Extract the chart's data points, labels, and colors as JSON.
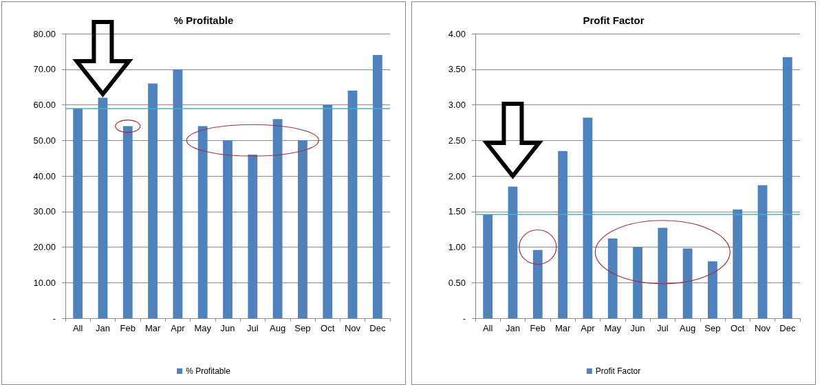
{
  "chart_data": [
    {
      "type": "bar",
      "title": "% Profitable",
      "categories": [
        "All",
        "Jan",
        "Feb",
        "Mar",
        "Apr",
        "May",
        "Jun",
        "Jul",
        "Aug",
        "Sep",
        "Oct",
        "Nov",
        "Dec"
      ],
      "series": [
        {
          "name": "% Profitable",
          "color": "#4f81bd",
          "values": [
            59,
            62,
            54,
            66,
            70,
            54,
            50,
            46,
            56,
            50,
            60,
            64,
            74
          ]
        }
      ],
      "ylim": [
        0,
        80
      ],
      "yticks": [
        {
          "value": 0,
          "label": "-"
        },
        {
          "value": 10,
          "label": "10.00"
        },
        {
          "value": 20,
          "label": "20.00"
        },
        {
          "value": 30,
          "label": "30.00"
        },
        {
          "value": 40,
          "label": "40.00"
        },
        {
          "value": 50,
          "label": "50.00"
        },
        {
          "value": 60,
          "label": "60.00"
        },
        {
          "value": 70,
          "label": "70.00"
        },
        {
          "value": 80,
          "label": "80.00"
        }
      ],
      "ref_lines": [
        {
          "axis": "y",
          "value": 59,
          "color": "#4bacc6"
        }
      ],
      "grid": "y",
      "legend": "bottom"
    },
    {
      "type": "bar",
      "title": "Profit Factor",
      "categories": [
        "All",
        "Jan",
        "Feb",
        "Mar",
        "Apr",
        "May",
        "Jun",
        "Jul",
        "Aug",
        "Sep",
        "Oct",
        "Nov",
        "Dec"
      ],
      "series": [
        {
          "name": "Profit Factor",
          "color": "#4f81bd",
          "values": [
            1.46,
            1.85,
            0.96,
            2.35,
            2.82,
            1.12,
            1.0,
            1.27,
            0.98,
            0.8,
            1.53,
            1.87,
            3.67
          ]
        }
      ],
      "ylim": [
        0,
        4
      ],
      "yticks": [
        {
          "value": 0,
          "label": "-"
        },
        {
          "value": 0.5,
          "label": "0.50"
        },
        {
          "value": 1,
          "label": "1.00"
        },
        {
          "value": 1.5,
          "label": "1.50"
        },
        {
          "value": 2,
          "label": "2.00"
        },
        {
          "value": 2.5,
          "label": "2.50"
        },
        {
          "value": 3,
          "label": "3.00"
        },
        {
          "value": 3.5,
          "label": "3.50"
        },
        {
          "value": 4,
          "label": "4.00"
        }
      ],
      "ref_lines": [
        {
          "axis": "y",
          "value": 1.46,
          "color": "#4bacc6"
        }
      ],
      "grid": "y",
      "legend": "bottom"
    }
  ]
}
